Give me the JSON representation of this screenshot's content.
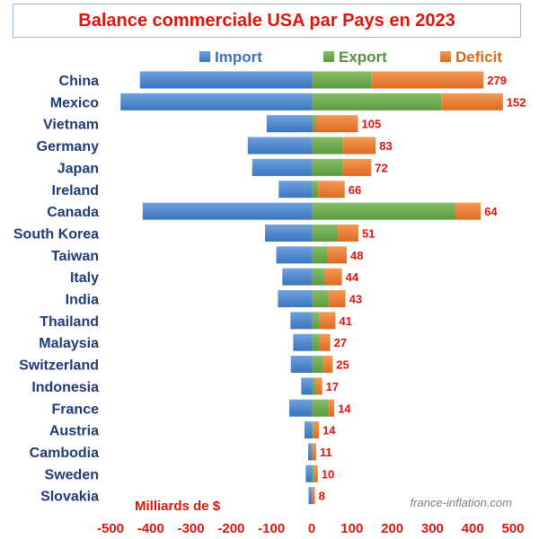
{
  "chart_data": {
    "type": "bar",
    "title": "Balance commerciale USA par Pays en 2023",
    "unit_label": "Milliards de $",
    "watermark": "france-inflation.com",
    "categories": [
      "China",
      "Mexico",
      "Vietnam",
      "Germany",
      "Japan",
      "Ireland",
      "Canada",
      "South Korea",
      "Taiwan",
      "Italy",
      "India",
      "Thailand",
      "Malaysia",
      "Switzerland",
      "Indonesia",
      "France",
      "Austria",
      "Cambodia",
      "Sweden",
      "Slovakia"
    ],
    "series": [
      {
        "name": "Import",
        "color": "#4a86cf",
        "values": [
          -427,
          -475,
          -112,
          -159,
          -148,
          -82,
          -420,
          -116,
          -88,
          -73,
          -84,
          -53,
          -46,
          -52,
          -26,
          -56,
          -18,
          -9,
          -15,
          -8
        ]
      },
      {
        "name": "Export",
        "color": "#6aa84f",
        "values": [
          148,
          323,
          10,
          76,
          76,
          16,
          356,
          65,
          39,
          31,
          41,
          18,
          19,
          27,
          9,
          42,
          4,
          0,
          5,
          0
        ]
      },
      {
        "name": "Deficit",
        "color": "#e8792e",
        "values": [
          279,
          152,
          105,
          83,
          72,
          66,
          64,
          51,
          48,
          44,
          43,
          41,
          27,
          25,
          17,
          14,
          14,
          11,
          10,
          8
        ]
      }
    ],
    "data_labels": [
      "279",
      "152",
      "105",
      "83",
      "72",
      "66",
      "64",
      "51",
      "48",
      "44",
      "43",
      "41",
      "27",
      "25",
      "17",
      "14",
      "14",
      "11",
      "10",
      "8"
    ],
    "xlim": [
      -500,
      500
    ],
    "xticks": [
      "-500",
      "-400",
      "-300",
      "-200",
      "-100",
      "0",
      "100",
      "200",
      "300",
      "400",
      "500"
    ],
    "xtick_values": [
      -500,
      -400,
      -300,
      -200,
      -100,
      0,
      100,
      200,
      300,
      400,
      500
    ],
    "legend_position": "top",
    "grid": false
  },
  "colors": {
    "title": "#e3120b",
    "category_label": "#1f3a78",
    "tick_label": "#e3120b",
    "data_label": "#e3120b",
    "import_label": "#3f74b8",
    "export_label": "#5a8f3d",
    "deficit_label": "#d5691f"
  }
}
